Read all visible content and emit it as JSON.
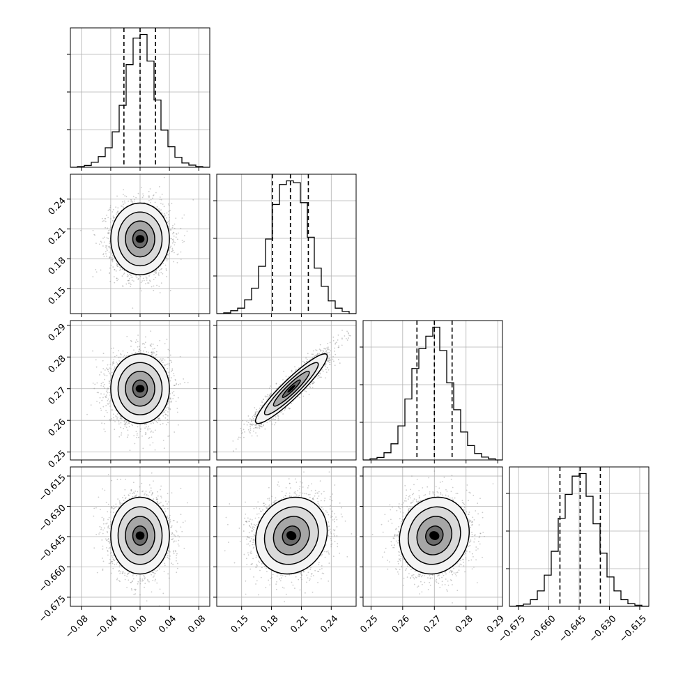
{
  "chart_data": {
    "type": "corner",
    "title": "",
    "parameters": [
      {
        "name": "",
        "range": [
          -0.095,
          0.095
        ],
        "ticks": [
          -0.08,
          -0.04,
          0.0,
          0.04,
          0.08
        ],
        "tick_labels": [
          "−0.08",
          "−0.04",
          "0.00",
          "0.04",
          "0.08"
        ],
        "quantiles": [
          -0.022,
          0.0,
          0.021
        ],
        "mean": 0.0,
        "sigma": 0.02,
        "hist_bins": [
          -0.095,
          -0.0855,
          -0.076,
          -0.0665,
          -0.057,
          -0.0475,
          -0.038,
          -0.0285,
          -0.019,
          -0.0095,
          0.0,
          0.0095,
          0.019,
          0.0285,
          0.038,
          0.0475,
          0.057,
          0.0665,
          0.076,
          0.0855,
          0.095
        ],
        "hist_counts": [
          0,
          2,
          5,
          14,
          30,
          55,
          100,
          175,
          290,
          365,
          375,
          300,
          190,
          105,
          58,
          28,
          12,
          6,
          2,
          0
        ]
      },
      {
        "name": "",
        "range": [
          0.125,
          0.265
        ],
        "ticks": [
          0.15,
          0.18,
          0.21,
          0.24
        ],
        "tick_labels": [
          "0.15",
          "0.18",
          "0.21",
          "0.24"
        ],
        "quantiles": [
          0.181,
          0.199,
          0.217
        ],
        "mean": 0.2,
        "sigma": 0.018,
        "hist_bins": [
          0.125,
          0.132,
          0.139,
          0.146,
          0.153,
          0.16,
          0.167,
          0.174,
          0.181,
          0.188,
          0.195,
          0.202,
          0.209,
          0.216,
          0.223,
          0.23,
          0.237,
          0.244,
          0.251,
          0.258,
          0.265
        ],
        "hist_counts": [
          0,
          2,
          8,
          15,
          38,
          70,
          130,
          205,
          300,
          355,
          365,
          360,
          305,
          210,
          125,
          75,
          35,
          15,
          6,
          0
        ]
      },
      {
        "name": "",
        "range": [
          0.2475,
          0.2915
        ],
        "ticks": [
          0.25,
          0.26,
          0.27,
          0.28,
          0.29
        ],
        "tick_labels": [
          "0.25",
          "0.26",
          "0.27",
          "0.28",
          "0.29"
        ],
        "quantiles": [
          0.2645,
          0.27,
          0.2756
        ],
        "mean": 0.27,
        "sigma": 0.0055,
        "hist_bins": [
          0.2475,
          0.2497,
          0.2519,
          0.2541,
          0.2563,
          0.2585,
          0.2607,
          0.2629,
          0.2651,
          0.2673,
          0.2695,
          0.2717,
          0.2739,
          0.2761,
          0.2783,
          0.2805,
          0.2827,
          0.2849,
          0.2871,
          0.2893,
          0.2915
        ],
        "hist_counts": [
          0,
          3,
          7,
          20,
          45,
          95,
          170,
          255,
          310,
          345,
          370,
          305,
          215,
          140,
          78,
          40,
          18,
          8,
          3,
          0
        ]
      },
      {
        "name": "",
        "range": [
          -0.6795,
          -0.6105
        ],
        "ticks": [
          -0.675,
          -0.66,
          -0.645,
          -0.63,
          -0.615
        ],
        "tick_labels": [
          "−0.675",
          "−0.660",
          "−0.645",
          "−0.630",
          "−0.615"
        ],
        "quantiles": [
          -0.6545,
          -0.6445,
          -0.6345
        ],
        "mean": -0.6445,
        "sigma": 0.0095,
        "hist_bins": [
          -0.6795,
          -0.67605,
          -0.6726,
          -0.66915,
          -0.6657,
          -0.66225,
          -0.6588,
          -0.65535,
          -0.6519,
          -0.64845,
          -0.645,
          -0.64155,
          -0.6381,
          -0.63465,
          -0.6312,
          -0.62775,
          -0.6243,
          -0.62085,
          -0.6174,
          -0.61395,
          -0.6105
        ],
        "hist_counts": [
          0,
          2,
          6,
          18,
          42,
          85,
          150,
          240,
          305,
          355,
          362,
          300,
          225,
          145,
          80,
          42,
          18,
          7,
          3,
          0
        ]
      }
    ],
    "correlations": [
      [
        1.0,
        0.0,
        0.0,
        0.0
      ],
      [
        0.0,
        1.0,
        0.93,
        0.12
      ],
      [
        0.0,
        0.93,
        1.0,
        0.1
      ],
      [
        0.0,
        0.12,
        0.1,
        1.0
      ]
    ],
    "contour_levels_sigma": [
      0.5,
      1.0,
      1.5,
      2.0
    ],
    "grid": true,
    "colors": {
      "line": "#000000",
      "grid": "#b0b0b0",
      "points": "#8c8c8c",
      "density_dark": "#000000"
    }
  }
}
